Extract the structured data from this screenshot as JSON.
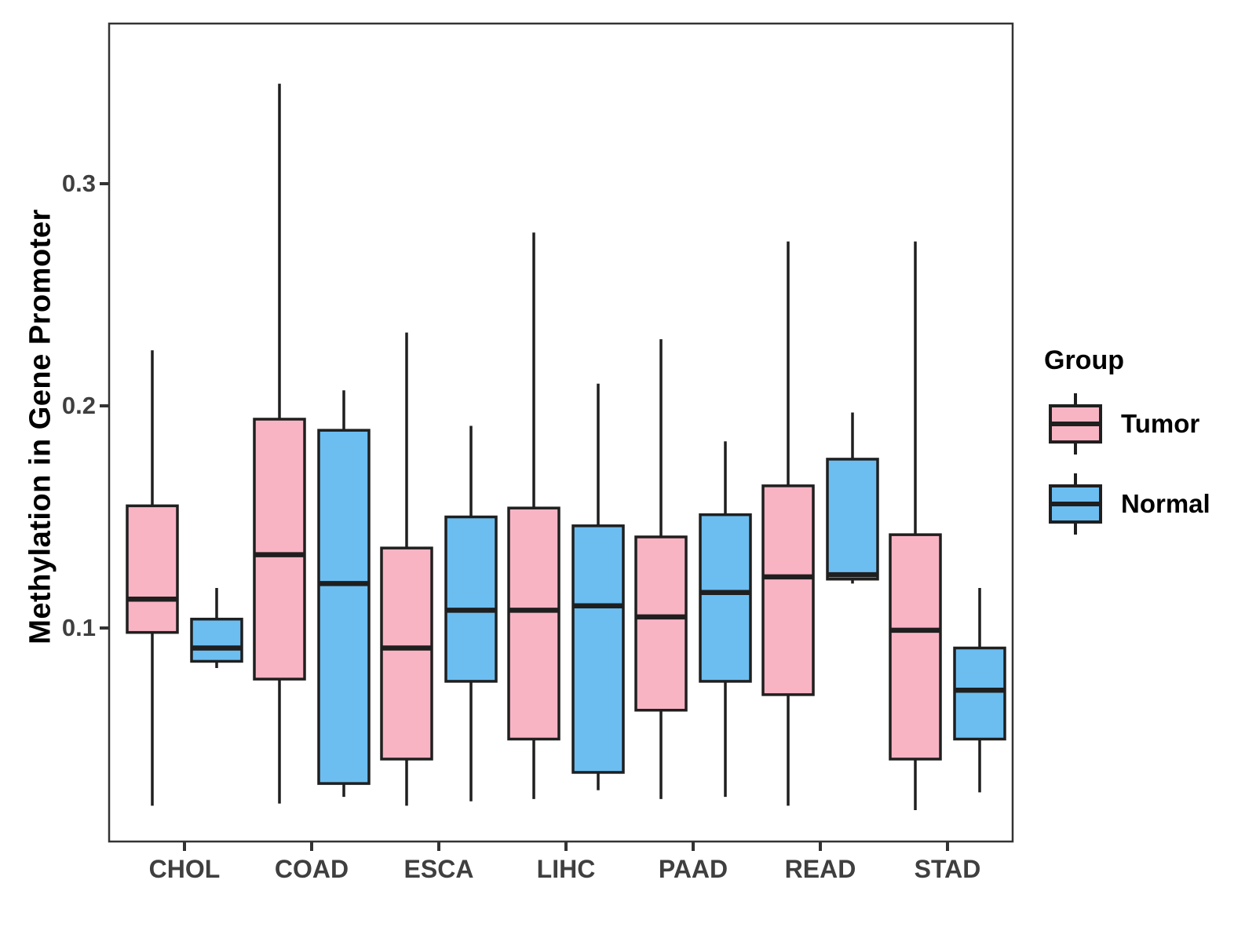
{
  "chart_data": {
    "type": "boxplot",
    "title": "",
    "xlabel": "",
    "ylabel": "Methylation in Gene Promoter",
    "yticks": [
      0.1,
      0.2,
      0.3
    ],
    "ylim": [
      0.004,
      0.372
    ],
    "grid": false,
    "panel_background": "#ffffff",
    "categories": [
      "CHOL",
      "COAD",
      "ESCA",
      "LIHC",
      "PAAD",
      "READ",
      "STAD"
    ],
    "legend": {
      "title": "Group",
      "position": "right",
      "entries": [
        {
          "label": "Tumor",
          "color": "#F9B4C4"
        },
        {
          "label": "Normal",
          "color": "#6CBEF1"
        }
      ]
    },
    "series": [
      {
        "name": "Tumor",
        "color": "#F9B4C4",
        "boxes": [
          {
            "category": "CHOL",
            "whisker_low": 0.02,
            "q1": 0.098,
            "median": 0.113,
            "q3": 0.155,
            "whisker_high": 0.225
          },
          {
            "category": "COAD",
            "whisker_low": 0.021,
            "q1": 0.077,
            "median": 0.133,
            "q3": 0.194,
            "whisker_high": 0.345
          },
          {
            "category": "ESCA",
            "whisker_low": 0.02,
            "q1": 0.041,
            "median": 0.091,
            "q3": 0.136,
            "whisker_high": 0.233
          },
          {
            "category": "LIHC",
            "whisker_low": 0.023,
            "q1": 0.05,
            "median": 0.108,
            "q3": 0.154,
            "whisker_high": 0.278
          },
          {
            "category": "PAAD",
            "whisker_low": 0.023,
            "q1": 0.063,
            "median": 0.105,
            "q3": 0.141,
            "whisker_high": 0.23
          },
          {
            "category": "READ",
            "whisker_low": 0.02,
            "q1": 0.07,
            "median": 0.123,
            "q3": 0.164,
            "whisker_high": 0.274
          },
          {
            "category": "STAD",
            "whisker_low": 0.018,
            "q1": 0.041,
            "median": 0.099,
            "q3": 0.142,
            "whisker_high": 0.274
          }
        ]
      },
      {
        "name": "Normal",
        "color": "#6CBEF1",
        "boxes": [
          {
            "category": "CHOL",
            "whisker_low": 0.082,
            "q1": 0.085,
            "median": 0.091,
            "q3": 0.104,
            "whisker_high": 0.118
          },
          {
            "category": "COAD",
            "whisker_low": 0.024,
            "q1": 0.03,
            "median": 0.12,
            "q3": 0.189,
            "whisker_high": 0.207
          },
          {
            "category": "ESCA",
            "whisker_low": 0.022,
            "q1": 0.076,
            "median": 0.108,
            "q3": 0.15,
            "whisker_high": 0.191
          },
          {
            "category": "LIHC",
            "whisker_low": 0.027,
            "q1": 0.035,
            "median": 0.11,
            "q3": 0.146,
            "whisker_high": 0.21
          },
          {
            "category": "PAAD",
            "whisker_low": 0.024,
            "q1": 0.076,
            "median": 0.116,
            "q3": 0.151,
            "whisker_high": 0.184
          },
          {
            "category": "READ",
            "whisker_low": 0.12,
            "q1": 0.122,
            "median": 0.124,
            "q3": 0.176,
            "whisker_high": 0.197
          },
          {
            "category": "STAD",
            "whisker_low": 0.026,
            "q1": 0.05,
            "median": 0.072,
            "q3": 0.091,
            "whisker_high": 0.118
          }
        ]
      }
    ]
  },
  "styles": {
    "box_stroke": "#1f1f1f",
    "median_stroke": "#1f1f1f",
    "panel_border": "#333333",
    "tick_color": "#333333",
    "tick_label_color": "#3f3f3f",
    "axis_title_color": "#000000"
  }
}
